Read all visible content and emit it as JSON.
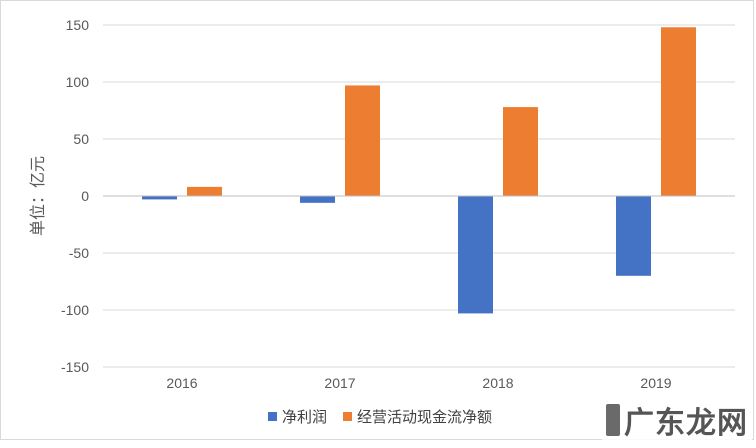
{
  "chart_data": {
    "type": "bar",
    "categories": [
      "2016",
      "2017",
      "2018",
      "2019"
    ],
    "series": [
      {
        "name": "净利润",
        "color": "#4472c4",
        "values": [
          -3,
          -6,
          -103,
          -70
        ]
      },
      {
        "name": "经营活动现金流净额",
        "color": "#ed7d31",
        "values": [
          8,
          97,
          78,
          148
        ]
      }
    ],
    "ylabel": "单位：亿元",
    "ylim": [
      -150,
      150
    ],
    "yticks": [
      150,
      100,
      50,
      0,
      -50,
      -100,
      -150
    ],
    "grid": true,
    "legend_position": "bottom"
  },
  "watermark": {
    "text": "广东龙网"
  }
}
